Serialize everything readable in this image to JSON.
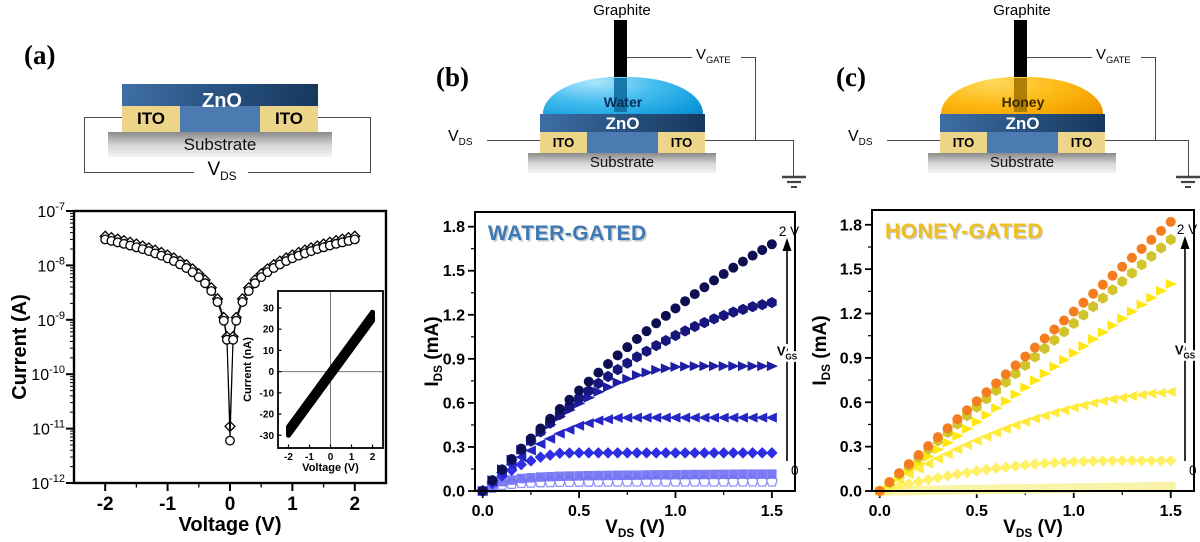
{
  "labels": {
    "panel_a": "(a)",
    "panel_b": "(b)",
    "panel_c": "(c)",
    "zno": "ZnO",
    "ito": "ITO",
    "substrate": "Substrate",
    "graphite": "Graphite",
    "water": "Water",
    "honey": "Honey",
    "v": "V",
    "ds_sub": "DS",
    "gate_sub": "GATE"
  },
  "colors": {
    "water_title": "#3d7ab5",
    "honey_title": "#f0bf1c",
    "zno_blue": "#4b7bb0",
    "ito_tan": "#ecd488",
    "water_blue": "#29abe2",
    "honey_orange": "#f7ac00"
  },
  "chart_data": [
    {
      "id": "chart-a",
      "type": "scatter",
      "x_scale": "linear",
      "y_scale": "log",
      "xlabel": "Voltage (V)",
      "ylabel": "Current (A)",
      "xlim": [
        -2.5,
        2.5
      ],
      "xticks": [
        -2,
        -1,
        0,
        1,
        2
      ],
      "x_minor_ticks": [
        -1.5,
        -0.5,
        0.5,
        1.5
      ],
      "y_exponents": [
        -7,
        -8,
        -9,
        -10,
        -11,
        -12
      ],
      "ylim_exponents": [
        -12,
        -7
      ],
      "grid": false,
      "legend": "none",
      "note": "two-terminal ITO/ZnO/ITO I-V, symmetric V-shape on log scale",
      "series": [
        {
          "name": "sweep-open-diamonds",
          "marker": "diamond",
          "open": true,
          "color": "#000000",
          "mirror_about_zero": true,
          "v_abs": [
            0,
            0.05,
            0.1,
            0.2,
            0.3,
            0.4,
            0.5,
            0.6,
            0.7,
            0.8,
            0.9,
            1.0,
            1.1,
            1.2,
            1.3,
            1.4,
            1.5,
            1.6,
            1.7,
            1.8,
            1.9,
            2.0
          ],
          "i": [
            1.1e-11,
            4.9e-10,
            1.1e-09,
            2.43e-09,
            3.88e-09,
            5.4e-09,
            6.98e-09,
            8.61e-09,
            1.03e-08,
            1.2e-08,
            1.37e-08,
            1.55e-08,
            1.73e-08,
            1.91e-08,
            2.1e-08,
            2.28e-08,
            2.47e-08,
            2.66e-08,
            2.85e-08,
            3.05e-08,
            3.24e-08,
            3.44e-08
          ]
        },
        {
          "name": "sweep-open-circles",
          "marker": "circle",
          "open": true,
          "color": "#000000",
          "mirror_about_zero": true,
          "v_abs": [
            0,
            0.05,
            0.1,
            0.2,
            0.3,
            0.4,
            0.5,
            0.6,
            0.7,
            0.8,
            0.9,
            1.0,
            1.1,
            1.2,
            1.3,
            1.4,
            1.5,
            1.6,
            1.7,
            1.8,
            1.9,
            2.0
          ],
          "i": [
            6e-12,
            4.3e-10,
            9.6e-10,
            2.12e-09,
            3.38e-09,
            4.7e-09,
            6.08e-09,
            7.5e-09,
            8.96e-09,
            1.04e-08,
            1.2e-08,
            1.35e-08,
            1.51e-08,
            1.66e-08,
            1.83e-08,
            1.99e-08,
            2.15e-08,
            2.32e-08,
            2.49e-08,
            2.65e-08,
            2.82e-08,
            3e-08
          ]
        }
      ],
      "inset": {
        "xlabel": "Voltage (V)",
        "ylabel": "Current (nA)",
        "xlim": [
          -2.5,
          2.5
        ],
        "ylim": [
          -36,
          38
        ],
        "xticks": [
          -2,
          -1,
          0,
          1,
          2
        ],
        "yticks": [
          30,
          20,
          10,
          0,
          -10,
          -20,
          -30
        ],
        "zero_crosshair": true,
        "band_polygon": [
          [
            -2,
            -30
          ],
          [
            2,
            24
          ],
          [
            2,
            28
          ],
          [
            -2,
            -26
          ]
        ],
        "band_color": "#000000"
      }
    },
    {
      "id": "chart-b",
      "type": "scatter",
      "title": "WATER-GATED",
      "title_color": "#3d7ab5",
      "xlabel_parts": [
        "V",
        "DS",
        " (V)"
      ],
      "ylabel_parts": [
        "I",
        "DS",
        " (mA)"
      ],
      "xlim": [
        -0.04,
        1.62
      ],
      "ylim": [
        0,
        1.9
      ],
      "xticks": [
        0.0,
        0.5,
        1.0,
        1.5
      ],
      "x_minor_ticks": [
        0.25,
        0.75,
        1.25
      ],
      "yticks": [
        0.0,
        0.3,
        0.6,
        0.9,
        1.2,
        1.5,
        1.8
      ],
      "y_minor_ticks": [
        0.15,
        0.45,
        0.75,
        1.05,
        1.35,
        1.65
      ],
      "series_note": "output curves, V_GS from 0 (bottom) to 2 V (top)",
      "annotations": {
        "top": "2 V",
        "side_parts": [
          "V",
          "GS"
        ],
        "bottom": "0"
      },
      "x": [
        0,
        0.1,
        0.2,
        0.3,
        0.4,
        0.5,
        0.6,
        0.7,
        0.8,
        0.9,
        1.0,
        1.1,
        1.2,
        1.3,
        1.4,
        1.5
      ],
      "series": [
        {
          "name": "vgs-top-2V",
          "marker": "circle",
          "color": "#0e0e52",
          "values": [
            0,
            0.147,
            0.289,
            0.426,
            0.558,
            0.684,
            0.806,
            0.924,
            1.035,
            1.142,
            1.244,
            1.341,
            1.434,
            1.521,
            1.603,
            1.68
          ]
        },
        {
          "name": "vgs-level-2",
          "marker": "hexagon",
          "color": "#16167d",
          "values": [
            0,
            0.143,
            0.277,
            0.403,
            0.521,
            0.632,
            0.733,
            0.827,
            0.913,
            0.99,
            1.059,
            1.12,
            1.173,
            1.218,
            1.255,
            1.283
          ]
        },
        {
          "name": "vgs-level-3",
          "marker": "triangle-right",
          "color": "#1d1da5",
          "values": [
            0,
            0.148,
            0.281,
            0.4,
            0.506,
            0.597,
            0.675,
            0.739,
            0.789,
            0.825,
            0.845,
            0.85,
            0.85,
            0.85,
            0.85,
            0.85
          ]
        },
        {
          "name": "vgs-level-4",
          "marker": "triangle-left",
          "color": "#2626c8",
          "values": [
            0,
            0.124,
            0.231,
            0.32,
            0.391,
            0.444,
            0.48,
            0.498,
            0.5,
            0.5,
            0.5,
            0.5,
            0.5,
            0.5,
            0.5,
            0.5
          ]
        },
        {
          "name": "vgs-level-5",
          "marker": "diamond",
          "color": "#2d2de4",
          "values": [
            0,
            0.103,
            0.18,
            0.231,
            0.257,
            0.26,
            0.26,
            0.26,
            0.26,
            0.26,
            0.26,
            0.26,
            0.26,
            0.26,
            0.26,
            0.26
          ]
        },
        {
          "name": "vgs-level-6",
          "marker": "square",
          "color": "#6a6af2",
          "opacity": 0.88,
          "values": [
            0,
            0.064,
            0.085,
            0.095,
            0.1,
            0.103,
            0.105,
            0.107,
            0.108,
            0.11,
            0.111,
            0.112,
            0.113,
            0.114,
            0.115,
            0.115
          ]
        },
        {
          "name": "vgs-bottom-0",
          "marker": "pentagon",
          "color": "#9090ff",
          "open": true,
          "values": [
            0,
            0.042,
            0.055,
            0.06,
            0.062,
            0.063,
            0.064,
            0.064,
            0.065,
            0.065,
            0.065,
            0.065,
            0.065,
            0.065,
            0.065,
            0.065
          ]
        }
      ]
    },
    {
      "id": "chart-c",
      "type": "scatter",
      "title": "HONEY-GATED",
      "title_color": "#f0bf1c",
      "xlabel_parts": [
        "V",
        "DS",
        " (V)"
      ],
      "ylabel_parts": [
        "I",
        "DS",
        " (mA)"
      ],
      "xlim": [
        -0.04,
        1.62
      ],
      "ylim": [
        0,
        1.9
      ],
      "xticks": [
        0.0,
        0.5,
        1.0,
        1.5
      ],
      "x_minor_ticks": [
        0.25,
        0.75,
        1.25
      ],
      "yticks": [
        0.0,
        0.3,
        0.6,
        0.9,
        1.2,
        1.5,
        1.8
      ],
      "y_minor_ticks": [
        0.15,
        0.45,
        0.75,
        1.05,
        1.35,
        1.65
      ],
      "series_note": "output curves, V_GS from 0 (bottom) to 2 V (top)",
      "annotations": {
        "top": "2 V",
        "side_parts": [
          "V",
          "GS"
        ],
        "bottom": "0"
      },
      "x": [
        0,
        0.1,
        0.2,
        0.3,
        0.4,
        0.5,
        0.6,
        0.7,
        0.8,
        0.9,
        1.0,
        1.1,
        1.2,
        1.3,
        1.4,
        1.5
      ],
      "series": [
        {
          "name": "vgs-top-2V",
          "marker": "circle",
          "color": "#f57d1f",
          "values": [
            0,
            0.121,
            0.243,
            0.364,
            0.485,
            0.607,
            0.728,
            0.849,
            0.97,
            1.092,
            1.213,
            1.334,
            1.456,
            1.577,
            1.698,
            1.82
          ]
        },
        {
          "name": "vgs-level-2",
          "marker": "hexagon",
          "color": "#d2c52c",
          "values": [
            0,
            0.113,
            0.227,
            0.34,
            0.453,
            0.567,
            0.68,
            0.793,
            0.907,
            1.02,
            1.133,
            1.247,
            1.36,
            1.473,
            1.587,
            1.7
          ]
        },
        {
          "name": "vgs-level-3",
          "marker": "triangle-right",
          "color": "#ffe70f",
          "values": [
            0,
            0.093,
            0.187,
            0.28,
            0.373,
            0.467,
            0.56,
            0.653,
            0.747,
            0.84,
            0.933,
            1.027,
            1.12,
            1.213,
            1.307,
            1.4
          ]
        },
        {
          "name": "vgs-level-4",
          "marker": "triangle-left",
          "color": "#ffeb3d",
          "values": [
            0,
            0.078,
            0.151,
            0.219,
            0.282,
            0.341,
            0.395,
            0.445,
            0.489,
            0.529,
            0.565,
            0.595,
            0.621,
            0.642,
            0.659,
            0.67
          ]
        },
        {
          "name": "vgs-level-5",
          "marker": "diamond",
          "color": "#fff066",
          "values": [
            0,
            0.033,
            0.063,
            0.09,
            0.114,
            0.135,
            0.154,
            0.169,
            0.182,
            0.192,
            0.199,
            0.202,
            0.205,
            0.205,
            0.205,
            0.205
          ]
        },
        {
          "name": "vgs-bottom-0",
          "marker": "square",
          "color": "#f8f3a6",
          "values": [
            0,
            0.002,
            0.004,
            0.006,
            0.008,
            0.01,
            0.012,
            0.014,
            0.016,
            0.018,
            0.02,
            0.022,
            0.024,
            0.026,
            0.028,
            0.03
          ]
        }
      ]
    }
  ]
}
